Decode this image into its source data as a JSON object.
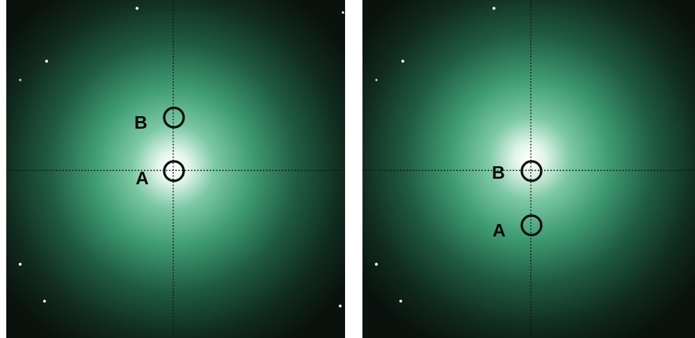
{
  "panels": [
    {
      "id": "left",
      "markers": [
        {
          "label": "B"
        },
        {
          "label": "A"
        }
      ]
    },
    {
      "id": "right",
      "markers": [
        {
          "label": "B"
        },
        {
          "label": "A"
        }
      ]
    }
  ],
  "colors": {
    "background": "#ffffff",
    "glow_center": "#ffffff",
    "glow_mid": "#3f9c72",
    "glow_outer": "#0f2119",
    "crosshair": "#111111",
    "marker": "#111111"
  }
}
